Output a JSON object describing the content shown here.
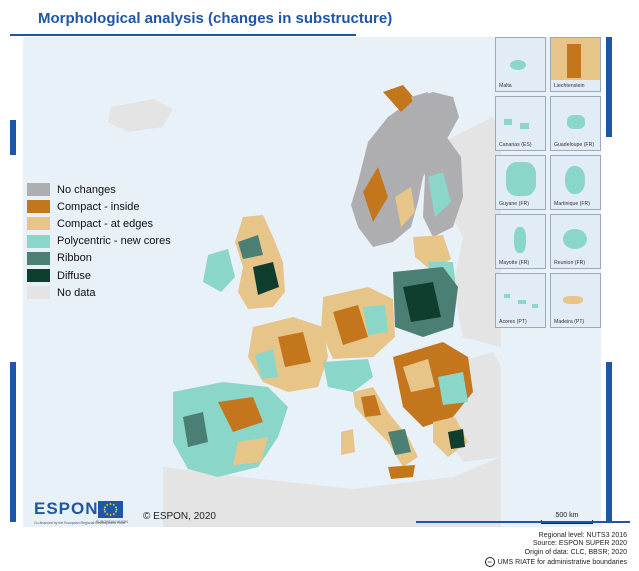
{
  "title": "Morphological analysis (changes in substructure)",
  "colors": {
    "no_changes": "#aeaeb0",
    "compact_inside": "#c4761d",
    "compact_edges": "#e7c487",
    "polycentric": "#8ad6c8",
    "ribbon": "#4c7f74",
    "diffuse": "#0f3d2e",
    "no_data": "#e4e4e4",
    "sea": "#e8f0f8",
    "brand": "#1f56a5"
  },
  "legend": [
    {
      "label": "No changes",
      "color": "#aeaeb0"
    },
    {
      "label": "Compact - inside",
      "color": "#c4761d"
    },
    {
      "label": "Compact - at edges",
      "color": "#e7c487"
    },
    {
      "label": "Polycentric - new cores",
      "color": "#8ad6c8"
    },
    {
      "label": "Ribbon",
      "color": "#4c7f74"
    },
    {
      "label": "Diffuse",
      "color": "#0f3d2e"
    },
    {
      "label": "No data",
      "color": "#e4e4e4"
    }
  ],
  "insets": [
    {
      "label": "Malta",
      "color": "#8ad6c8"
    },
    {
      "label": "Liechtenstein",
      "color": "#c4761d"
    },
    {
      "label": "Canarias (ES)",
      "color": "#8ad6c8"
    },
    {
      "label": "Guadeloupe (FR)",
      "color": "#8ad6c8"
    },
    {
      "label": "Guyane (FR)",
      "color": "#8ad6c8"
    },
    {
      "label": "Martinique (FR)",
      "color": "#8ad6c8"
    },
    {
      "label": "Mayotte (FR)",
      "color": "#8ad6c8"
    },
    {
      "label": "Reunion (FR)",
      "color": "#8ad6c8"
    },
    {
      "label": "Acores (PT)",
      "color": "#8ad6c8"
    },
    {
      "label": "Madeira (PT)",
      "color": "#e7c487"
    }
  ],
  "copyright": "© ESPON, 2020",
  "scale_label": "500 km",
  "logo": {
    "name": "ESPON",
    "cofinanced": "Co-financed by the European Regional Development Fund",
    "eu_label": "EUROPEAN UNION"
  },
  "credits": {
    "regional_level": "Regional level: NUTS3 2016",
    "source": "Source: ESPON SUPER 2020",
    "origin": "Origin of data: CLC, BBSR; 2020",
    "boundaries": "UMS RIATE for administrative boundaries",
    "cc_icon": "cc"
  }
}
